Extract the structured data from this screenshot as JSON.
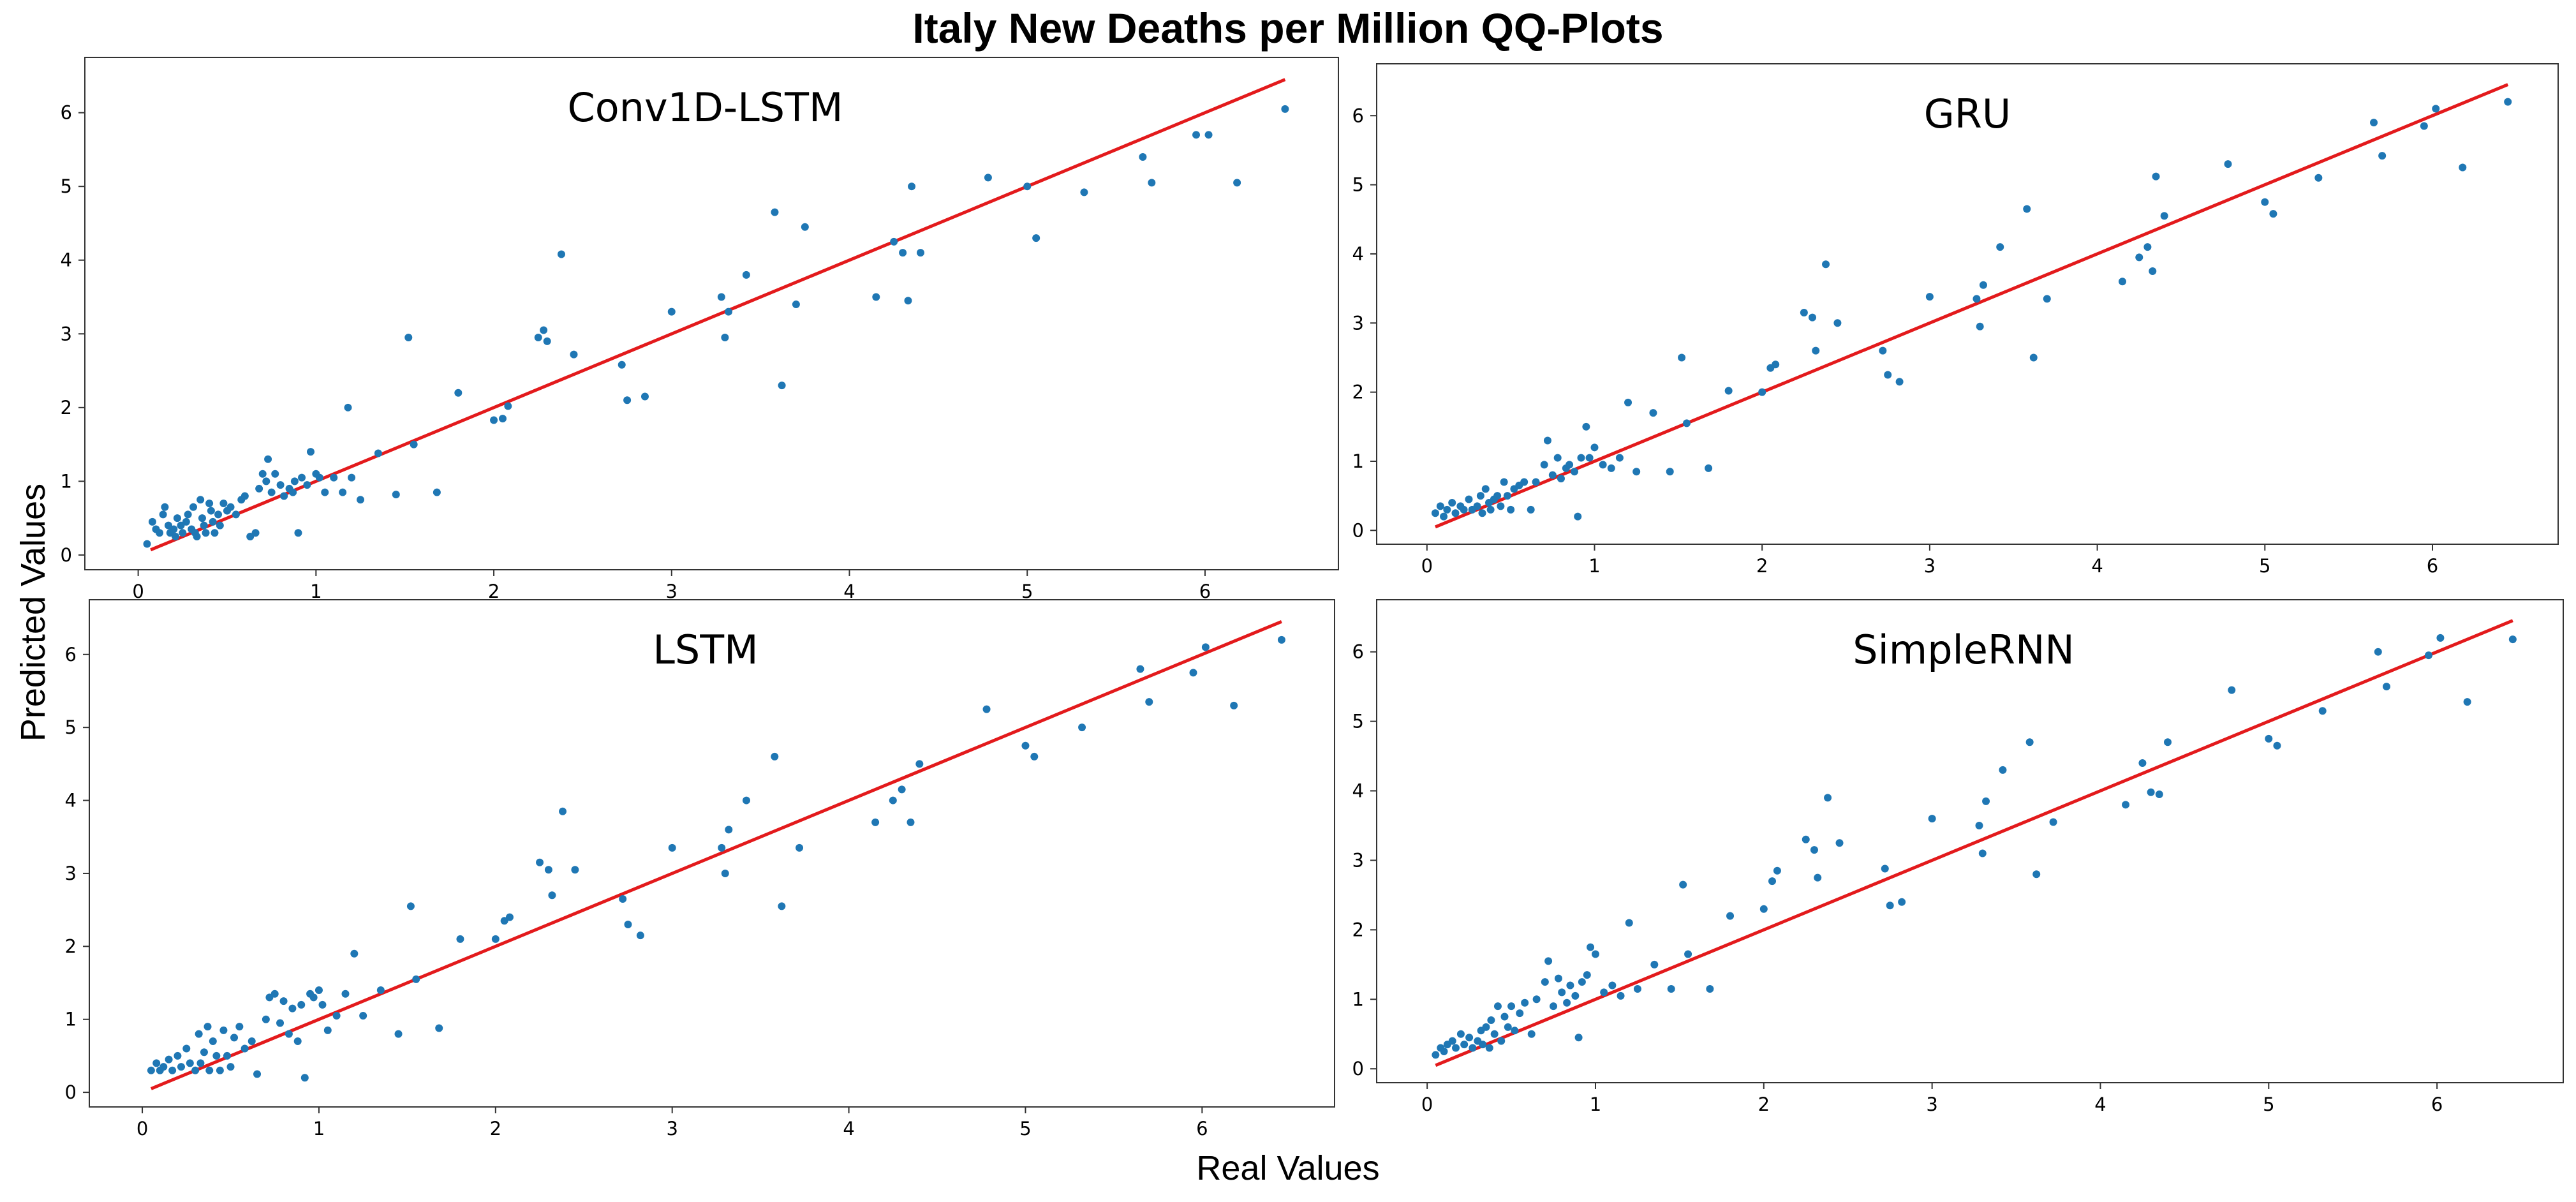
{
  "figure": {
    "title": "Italy New Deaths per Million QQ-Plots",
    "xlabel": "Real Values",
    "ylabel": "Predicted Values"
  },
  "colors": {
    "points": "#1f77b4",
    "line": "#e31a1c",
    "axes": "#333333"
  },
  "chart_data": [
    {
      "type": "scatter",
      "title": "Conv1D-LSTM",
      "xlim": [
        -0.3,
        6.75
      ],
      "ylim": [
        -0.2,
        6.75
      ],
      "xticks": [
        0,
        1,
        2,
        3,
        4,
        5,
        6
      ],
      "yticks": [
        0,
        1,
        2,
        3,
        4,
        5,
        6
      ],
      "reference_line": {
        "x": [
          0.07,
          6.45
        ],
        "y": [
          0.07,
          6.45
        ]
      },
      "x": [
        0.05,
        0.08,
        0.1,
        0.12,
        0.14,
        0.15,
        0.17,
        0.18,
        0.2,
        0.21,
        0.22,
        0.24,
        0.25,
        0.27,
        0.28,
        0.3,
        0.31,
        0.32,
        0.33,
        0.35,
        0.36,
        0.37,
        0.38,
        0.4,
        0.41,
        0.42,
        0.43,
        0.45,
        0.46,
        0.48,
        0.5,
        0.52,
        0.55,
        0.58,
        0.6,
        0.63,
        0.66,
        0.68,
        0.7,
        0.72,
        0.73,
        0.75,
        0.77,
        0.8,
        0.82,
        0.85,
        0.87,
        0.88,
        0.9,
        0.92,
        0.95,
        0.97,
        1.0,
        1.02,
        1.05,
        1.1,
        1.15,
        1.18,
        1.2,
        1.25,
        1.35,
        1.45,
        1.52,
        1.55,
        1.68,
        1.8,
        2.0,
        2.05,
        2.08,
        2.25,
        2.28,
        2.3,
        2.38,
        2.45,
        2.72,
        2.75,
        2.85,
        3.0,
        3.28,
        3.3,
        3.32,
        3.42,
        3.58,
        3.62,
        3.7,
        3.75,
        4.15,
        4.25,
        4.3,
        4.33,
        4.35,
        4.4,
        4.78,
        5.0,
        5.05,
        5.32,
        5.65,
        5.7,
        5.95,
        6.02,
        6.18,
        6.45
      ],
      "y": [
        0.15,
        0.45,
        0.35,
        0.3,
        0.55,
        0.65,
        0.4,
        0.3,
        0.35,
        0.25,
        0.5,
        0.4,
        0.3,
        0.45,
        0.55,
        0.35,
        0.65,
        0.3,
        0.25,
        0.75,
        0.5,
        0.4,
        0.3,
        0.7,
        0.6,
        0.45,
        0.3,
        0.55,
        0.4,
        0.7,
        0.6,
        0.65,
        0.55,
        0.75,
        0.8,
        0.25,
        0.3,
        0.9,
        1.1,
        1.0,
        1.3,
        0.85,
        1.1,
        0.95,
        0.8,
        0.9,
        0.85,
        1.0,
        0.3,
        1.05,
        0.95,
        1.4,
        1.1,
        1.05,
        0.85,
        1.05,
        0.85,
        2.0,
        1.05,
        0.75,
        1.38,
        0.82,
        2.95,
        1.5,
        0.85,
        2.2,
        1.83,
        1.85,
        2.02,
        2.95,
        3.05,
        2.9,
        4.08,
        2.72,
        2.58,
        2.1,
        2.15,
        3.3,
        3.5,
        2.95,
        3.3,
        3.8,
        4.65,
        2.3,
        3.4,
        4.45,
        3.5,
        4.25,
        4.1,
        3.45,
        5.0,
        4.1,
        5.12,
        5.0,
        4.3,
        4.92,
        5.4,
        5.05,
        5.7,
        5.7,
        5.05,
        6.05
      ]
    },
    {
      "type": "scatter",
      "title": "GRU",
      "xlim": [
        -0.3,
        6.75
      ],
      "ylim": [
        -0.2,
        6.75
      ],
      "xticks": [
        0,
        1,
        2,
        3,
        4,
        5,
        6
      ],
      "yticks": [
        0,
        1,
        2,
        3,
        4,
        5,
        6
      ],
      "reference_line": {
        "x": [
          0.05,
          6.45
        ],
        "y": [
          0.05,
          6.45
        ]
      },
      "x": [
        0.05,
        0.08,
        0.1,
        0.12,
        0.15,
        0.17,
        0.2,
        0.22,
        0.25,
        0.27,
        0.3,
        0.32,
        0.33,
        0.35,
        0.37,
        0.38,
        0.4,
        0.42,
        0.44,
        0.46,
        0.48,
        0.5,
        0.52,
        0.55,
        0.58,
        0.62,
        0.65,
        0.7,
        0.72,
        0.75,
        0.78,
        0.8,
        0.83,
        0.85,
        0.88,
        0.9,
        0.92,
        0.95,
        0.97,
        1.0,
        1.05,
        1.1,
        1.15,
        1.2,
        1.25,
        1.35,
        1.45,
        1.52,
        1.55,
        1.68,
        1.8,
        2.0,
        2.05,
        2.08,
        2.25,
        2.3,
        2.32,
        2.38,
        2.45,
        2.72,
        2.75,
        2.82,
        3.0,
        3.28,
        3.3,
        3.32,
        3.42,
        3.58,
        3.62,
        3.7,
        4.15,
        4.25,
        4.3,
        4.33,
        4.35,
        4.4,
        4.78,
        5.0,
        5.05,
        5.32,
        5.65,
        5.7,
        5.95,
        6.02,
        6.18,
        6.45
      ],
      "y": [
        0.25,
        0.35,
        0.2,
        0.3,
        0.4,
        0.25,
        0.35,
        0.3,
        0.45,
        0.3,
        0.35,
        0.5,
        0.25,
        0.6,
        0.4,
        0.3,
        0.45,
        0.5,
        0.35,
        0.7,
        0.5,
        0.3,
        0.6,
        0.65,
        0.7,
        0.3,
        0.7,
        0.95,
        1.3,
        0.8,
        1.05,
        0.75,
        0.9,
        0.95,
        0.85,
        0.2,
        1.05,
        1.5,
        1.05,
        1.2,
        0.95,
        0.9,
        1.05,
        1.85,
        0.85,
        1.7,
        0.85,
        2.5,
        1.55,
        0.9,
        2.02,
        2.0,
        2.35,
        2.4,
        3.15,
        3.08,
        2.6,
        3.85,
        3.0,
        2.6,
        2.25,
        2.15,
        3.38,
        3.35,
        2.95,
        3.55,
        4.1,
        4.65,
        2.5,
        3.35,
        3.6,
        3.95,
        4.1,
        3.75,
        5.12,
        4.55,
        5.3,
        4.75,
        4.58,
        5.1,
        5.9,
        5.42,
        5.85,
        6.1,
        5.25,
        6.2
      ]
    },
    {
      "type": "scatter",
      "title": "LSTM",
      "xlim": [
        -0.3,
        6.75
      ],
      "ylim": [
        -0.2,
        6.75
      ],
      "xticks": [
        0,
        1,
        2,
        3,
        4,
        5,
        6
      ],
      "yticks": [
        0,
        1,
        2,
        3,
        4,
        5,
        6
      ],
      "reference_line": {
        "x": [
          0.05,
          6.45
        ],
        "y": [
          0.05,
          6.45
        ]
      },
      "x": [
        0.05,
        0.08,
        0.1,
        0.12,
        0.15,
        0.17,
        0.2,
        0.22,
        0.25,
        0.27,
        0.3,
        0.32,
        0.33,
        0.35,
        0.37,
        0.38,
        0.4,
        0.42,
        0.44,
        0.46,
        0.48,
        0.5,
        0.52,
        0.55,
        0.58,
        0.62,
        0.65,
        0.7,
        0.72,
        0.75,
        0.78,
        0.8,
        0.83,
        0.85,
        0.88,
        0.9,
        0.92,
        0.95,
        0.97,
        1.0,
        1.02,
        1.05,
        1.1,
        1.15,
        1.2,
        1.25,
        1.35,
        1.45,
        1.52,
        1.55,
        1.68,
        1.8,
        2.0,
        2.05,
        2.08,
        2.25,
        2.3,
        2.32,
        2.38,
        2.45,
        2.72,
        2.75,
        2.82,
        3.0,
        3.28,
        3.3,
        3.32,
        3.42,
        3.58,
        3.62,
        3.72,
        4.15,
        4.25,
        4.3,
        4.35,
        4.4,
        4.78,
        5.0,
        5.05,
        5.32,
        5.65,
        5.7,
        5.95,
        6.02,
        6.18,
        6.45
      ],
      "y": [
        0.3,
        0.4,
        0.3,
        0.35,
        0.45,
        0.3,
        0.5,
        0.35,
        0.6,
        0.4,
        0.3,
        0.8,
        0.4,
        0.55,
        0.9,
        0.3,
        0.7,
        0.5,
        0.3,
        0.85,
        0.5,
        0.35,
        0.75,
        0.9,
        0.6,
        0.7,
        0.25,
        1.0,
        1.3,
        1.35,
        0.95,
        1.25,
        0.8,
        1.15,
        0.7,
        1.2,
        0.2,
        1.35,
        1.3,
        1.4,
        1.2,
        0.85,
        1.05,
        1.35,
        1.9,
        1.05,
        1.4,
        0.8,
        2.55,
        1.55,
        0.88,
        2.1,
        2.1,
        2.35,
        2.4,
        3.15,
        3.05,
        2.7,
        3.85,
        3.05,
        2.65,
        2.3,
        2.15,
        3.35,
        3.35,
        3.0,
        3.6,
        4.0,
        4.6,
        2.55,
        3.35,
        3.7,
        4.0,
        4.15,
        3.7,
        4.5,
        5.25,
        4.75,
        4.6,
        5.0,
        5.8,
        5.35,
        5.75,
        6.1,
        5.3,
        6.2
      ]
    },
    {
      "type": "scatter",
      "title": "SimpleRNN",
      "xlim": [
        -0.3,
        6.75
      ],
      "ylim": [
        -0.2,
        6.75
      ],
      "xticks": [
        0,
        1,
        2,
        3,
        4,
        5,
        6
      ],
      "yticks": [
        0,
        1,
        2,
        3,
        4,
        5,
        6
      ],
      "reference_line": {
        "x": [
          0.05,
          6.45
        ],
        "y": [
          0.05,
          6.45
        ]
      },
      "x": [
        0.05,
        0.08,
        0.1,
        0.12,
        0.15,
        0.17,
        0.2,
        0.22,
        0.25,
        0.27,
        0.3,
        0.32,
        0.33,
        0.35,
        0.37,
        0.38,
        0.4,
        0.42,
        0.44,
        0.46,
        0.48,
        0.5,
        0.52,
        0.55,
        0.58,
        0.62,
        0.65,
        0.7,
        0.72,
        0.75,
        0.78,
        0.8,
        0.83,
        0.85,
        0.88,
        0.9,
        0.92,
        0.95,
        0.97,
        1.0,
        1.05,
        1.1,
        1.15,
        1.2,
        1.25,
        1.35,
        1.45,
        1.52,
        1.55,
        1.68,
        1.8,
        2.0,
        2.05,
        2.08,
        2.25,
        2.3,
        2.32,
        2.38,
        2.45,
        2.72,
        2.75,
        2.82,
        3.0,
        3.28,
        3.3,
        3.32,
        3.42,
        3.58,
        3.62,
        3.72,
        4.15,
        4.25,
        4.3,
        4.35,
        4.4,
        4.78,
        5.0,
        5.05,
        5.32,
        5.65,
        5.7,
        5.95,
        6.02,
        6.18,
        6.45
      ],
      "y": [
        0.2,
        0.3,
        0.25,
        0.35,
        0.4,
        0.3,
        0.5,
        0.35,
        0.45,
        0.3,
        0.4,
        0.55,
        0.35,
        0.6,
        0.3,
        0.7,
        0.5,
        0.9,
        0.4,
        0.75,
        0.6,
        0.9,
        0.55,
        0.8,
        0.95,
        0.5,
        1.0,
        1.25,
        1.55,
        0.9,
        1.3,
        1.1,
        0.95,
        1.2,
        1.05,
        0.45,
        1.25,
        1.35,
        1.75,
        1.65,
        1.1,
        1.2,
        1.05,
        2.1,
        1.15,
        1.5,
        1.15,
        2.65,
        1.65,
        1.15,
        2.2,
        2.3,
        2.7,
        2.85,
        3.3,
        3.15,
        2.75,
        3.9,
        3.25,
        2.88,
        2.35,
        2.4,
        3.6,
        3.5,
        3.1,
        3.85,
        4.3,
        4.7,
        2.8,
        3.55,
        3.8,
        4.4,
        3.98,
        3.95,
        4.7,
        5.45,
        4.75,
        4.65,
        5.15,
        6.0,
        5.5,
        5.95,
        6.2,
        5.28,
        6.18
      ]
    }
  ]
}
